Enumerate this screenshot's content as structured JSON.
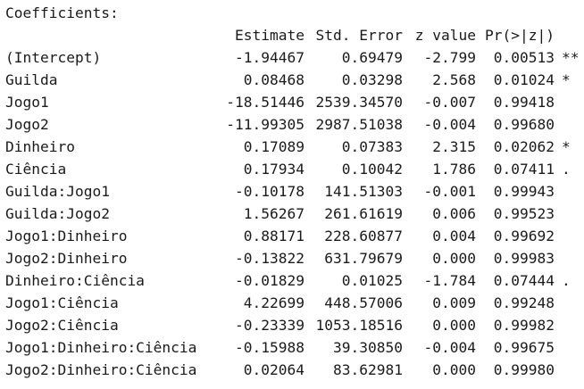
{
  "title": "Coefficients:",
  "headers": {
    "name": "",
    "estimate": "Estimate",
    "std_error": "Std. Error",
    "z_value": "z value",
    "p_value": "Pr(>|z|)",
    "signif": ""
  },
  "rows": [
    {
      "name": "(Intercept)",
      "estimate": "-1.94467",
      "std_error": "0.69479",
      "z_value": "-2.799",
      "p_value": "0.00513",
      "signif": "**"
    },
    {
      "name": "Guilda",
      "estimate": "0.08468",
      "std_error": "0.03298",
      "z_value": "2.568",
      "p_value": "0.01024",
      "signif": "*"
    },
    {
      "name": "Jogo1",
      "estimate": "-18.51446",
      "std_error": "2539.34570",
      "z_value": "-0.007",
      "p_value": "0.99418",
      "signif": ""
    },
    {
      "name": "Jogo2",
      "estimate": "-11.99305",
      "std_error": "2987.51038",
      "z_value": "-0.004",
      "p_value": "0.99680",
      "signif": ""
    },
    {
      "name": "Dinheiro",
      "estimate": "0.17089",
      "std_error": "0.07383",
      "z_value": "2.315",
      "p_value": "0.02062",
      "signif": "*"
    },
    {
      "name": "Ciência",
      "estimate": "0.17934",
      "std_error": "0.10042",
      "z_value": "1.786",
      "p_value": "0.07411",
      "signif": "."
    },
    {
      "name": "Guilda:Jogo1",
      "estimate": "-0.10178",
      "std_error": "141.51303",
      "z_value": "-0.001",
      "p_value": "0.99943",
      "signif": ""
    },
    {
      "name": "Guilda:Jogo2",
      "estimate": "1.56267",
      "std_error": "261.61619",
      "z_value": "0.006",
      "p_value": "0.99523",
      "signif": ""
    },
    {
      "name": "Jogo1:Dinheiro",
      "estimate": "0.88171",
      "std_error": "228.60877",
      "z_value": "0.004",
      "p_value": "0.99692",
      "signif": ""
    },
    {
      "name": "Jogo2:Dinheiro",
      "estimate": "-0.13822",
      "std_error": "631.79679",
      "z_value": "0.000",
      "p_value": "0.99983",
      "signif": ""
    },
    {
      "name": "Dinheiro:Ciência",
      "estimate": "-0.01829",
      "std_error": "0.01025",
      "z_value": "-1.784",
      "p_value": "0.07444",
      "signif": "."
    },
    {
      "name": "Jogo1:Ciência",
      "estimate": "4.22699",
      "std_error": "448.57006",
      "z_value": "0.009",
      "p_value": "0.99248",
      "signif": ""
    },
    {
      "name": "Jogo2:Ciência",
      "estimate": "-0.23339",
      "std_error": "1053.18516",
      "z_value": "0.000",
      "p_value": "0.99982",
      "signif": ""
    },
    {
      "name": "Jogo1:Dinheiro:Ciência",
      "estimate": "-0.15988",
      "std_error": "39.30850",
      "z_value": "-0.004",
      "p_value": "0.99675",
      "signif": ""
    },
    {
      "name": "Jogo2:Dinheiro:Ciência",
      "estimate": "0.02064",
      "std_error": "83.62981",
      "z_value": "0.000",
      "p_value": "0.99980",
      "signif": ""
    }
  ],
  "colors": {
    "background": "#ffffff",
    "text": "#1a1a1a"
  }
}
